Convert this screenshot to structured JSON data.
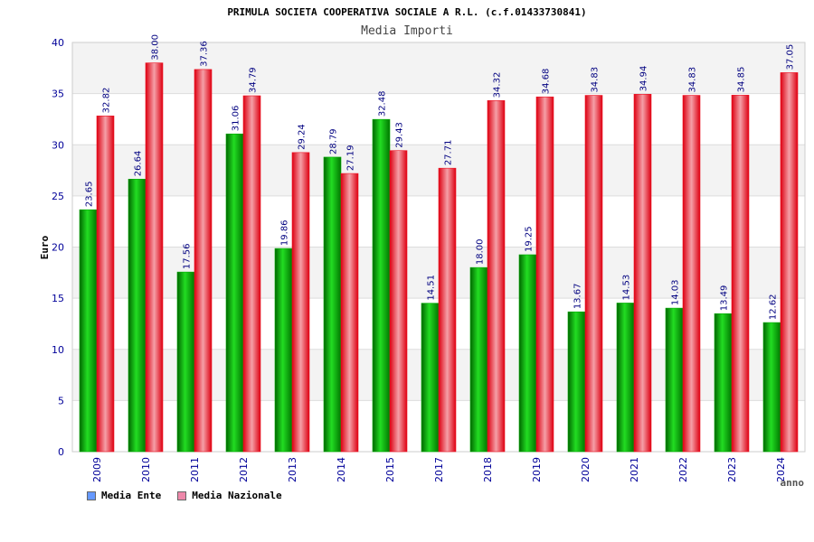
{
  "chart_data": {
    "type": "bar",
    "title": "PRIMULA SOCIETA COOPERATIVA SOCIALE A R.L. (c.f.01433730841)",
    "subtitle": "Media Importi",
    "xlabel": "anno",
    "ylabel": "Euro",
    "ylim": [
      0,
      40
    ],
    "yticks": [
      "0",
      "5",
      "10",
      "15",
      "20",
      "25",
      "30",
      "35",
      "40"
    ],
    "grid": true,
    "legend_position": "bottom-left",
    "categories": [
      "2009",
      "2010",
      "2011",
      "2012",
      "2013",
      "2014",
      "2015",
      "2017",
      "2018",
      "2019",
      "2020",
      "2021",
      "2022",
      "2023",
      "2024"
    ],
    "series": [
      {
        "name": "Media Ente",
        "color": "#00aa00",
        "legend_color": "#6699ff",
        "values": [
          23.65,
          26.64,
          17.56,
          31.06,
          19.86,
          28.79,
          32.48,
          14.51,
          18.0,
          19.25,
          13.67,
          14.53,
          14.03,
          13.49,
          12.62
        ],
        "labels": [
          "23.65",
          "26.64",
          "17.56",
          "31.06",
          "19.86",
          "28.79",
          "32.48",
          "14.51",
          "18.00",
          "19.25",
          "13.67",
          "14.53",
          "14.03",
          "13.49",
          "12.62"
        ]
      },
      {
        "name": "Media Nazionale",
        "color": "#ee1122",
        "legend_color": "#ee88aa",
        "values": [
          32.82,
          38.0,
          37.36,
          34.79,
          29.24,
          27.19,
          29.43,
          27.71,
          34.32,
          34.68,
          34.83,
          34.94,
          34.83,
          34.85,
          37.05
        ],
        "labels": [
          "32.82",
          "38.00",
          "37.36",
          "34.79",
          "29.24",
          "27.19",
          "29.43",
          "27.71",
          "34.32",
          "34.68",
          "34.83",
          "34.94",
          "34.83",
          "34.85",
          "37.05"
        ]
      }
    ]
  }
}
